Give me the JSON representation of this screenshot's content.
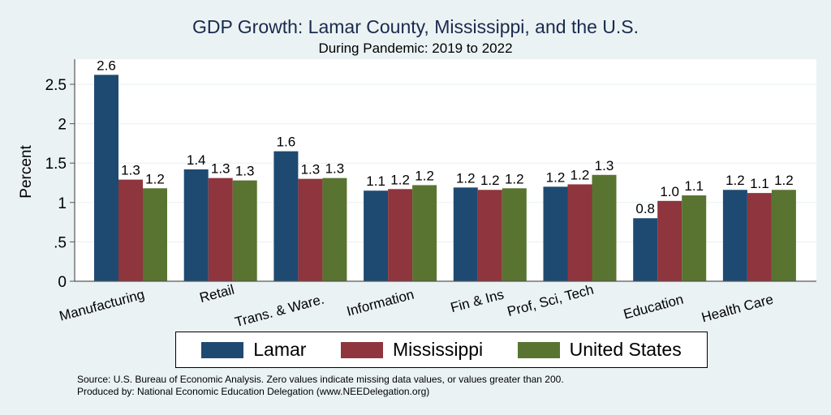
{
  "chart_data": {
    "type": "bar",
    "title": "GDP Growth: Lamar County, Mississippi, and the U.S.",
    "subtitle": "During Pandemic: 2019 to 2022",
    "xlabel": "",
    "ylabel": "Percent",
    "ylim": [
      0,
      2.75
    ],
    "yticks": [
      0,
      0.5,
      1,
      1.5,
      2,
      2.5
    ],
    "ytick_labels": [
      "0",
      ".5",
      "1",
      "1.5",
      "2",
      "2.5"
    ],
    "grid": true,
    "legend_position": "bottom",
    "categories": [
      "Manufacturing",
      "Retail",
      "Trans. & Ware.",
      "Information",
      "Fin & Ins",
      "Prof, Sci, Tech",
      "Education",
      "Health Care"
    ],
    "series": [
      {
        "name": "Lamar",
        "color": "#1e4a72",
        "values": [
          2.62,
          1.42,
          1.65,
          1.15,
          1.19,
          1.2,
          0.8,
          1.16
        ],
        "labels": [
          "2.6",
          "1.4",
          "1.6",
          "1.1",
          "1.2",
          "1.2",
          "0.8",
          "1.2"
        ]
      },
      {
        "name": "Mississippi",
        "color": "#8e353d",
        "values": [
          1.29,
          1.31,
          1.3,
          1.17,
          1.16,
          1.23,
          1.02,
          1.12
        ],
        "labels": [
          "1.3",
          "1.3",
          "1.3",
          "1.2",
          "1.2",
          "1.2",
          "1.0",
          "1.1"
        ]
      },
      {
        "name": "United States",
        "color": "#587430",
        "values": [
          1.18,
          1.28,
          1.31,
          1.22,
          1.18,
          1.35,
          1.09,
          1.16
        ],
        "labels": [
          "1.2",
          "1.3",
          "1.3",
          "1.2",
          "1.2",
          "1.3",
          "1.1",
          "1.2"
        ]
      }
    ]
  },
  "footer": {
    "source": "Source: U.S. Bureau of Economic Analysis. Zero values indicate missing data values, or values greater than 200.",
    "produced": "Produced by: National Economic Education Delegation (www.NEEDelegation.org)"
  }
}
